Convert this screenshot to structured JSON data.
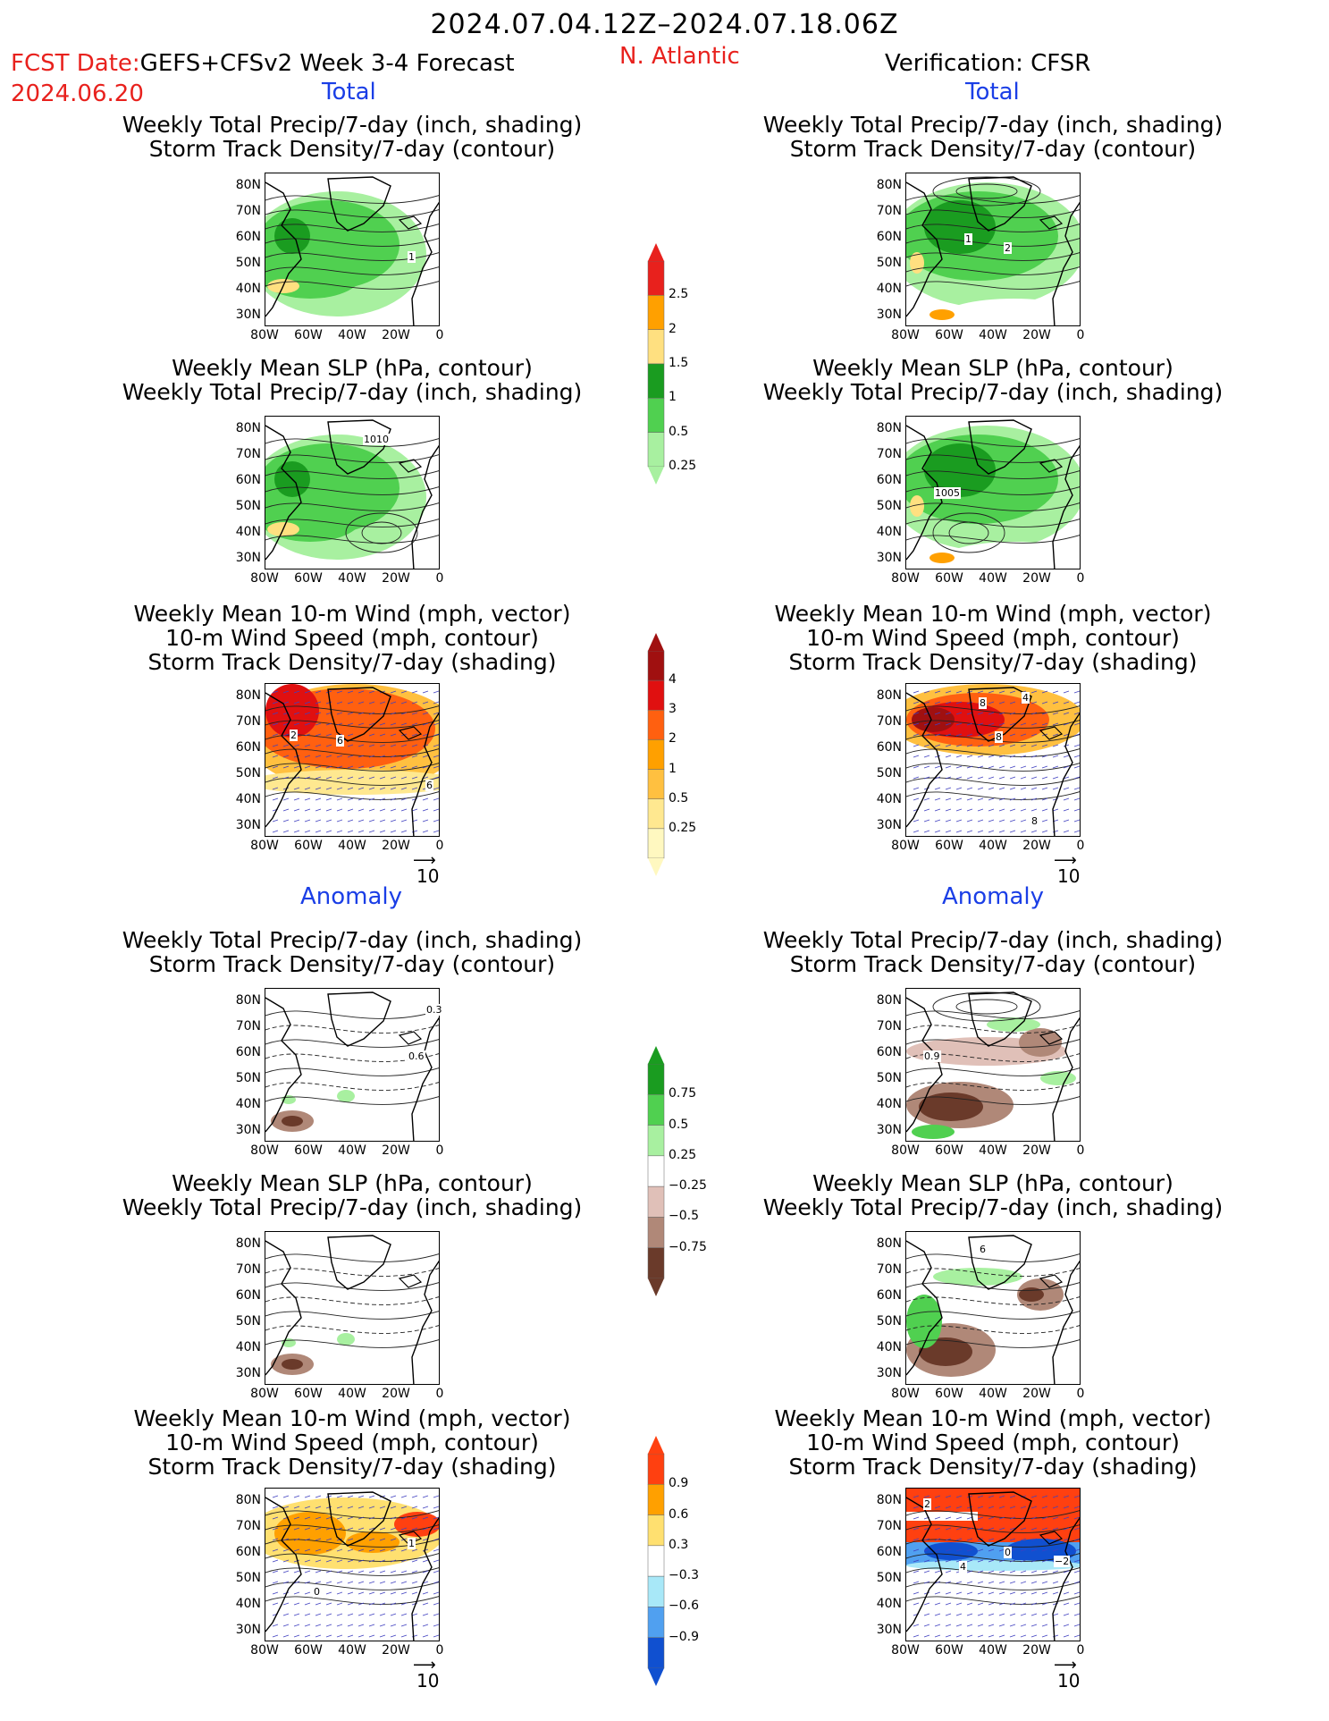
{
  "header": {
    "date_range": "2024.07.04.12Z–2024.07.18.06Z",
    "fcst_prefix": "FCST Date:",
    "fcst_model": "GEFS+CFSv2 Week 3-4 Forecast",
    "fcst_date": "2024.06.20",
    "region": "N. Atlantic",
    "verification": "Verification: CFSR"
  },
  "sections": {
    "total": "Total",
    "anomaly": "Anomaly"
  },
  "titles": {
    "precip_storm": [
      "Weekly Total Precip/7-day (inch, shading)",
      "Storm Track Density/7-day (contour)"
    ],
    "slp_precip": [
      "Weekly Mean SLP (hPa, contour)",
      "Weekly Total Precip/7-day (inch, shading)"
    ],
    "wind_storm": [
      "Weekly Mean 10-m Wind (mph, vector)",
      "10-m Wind Speed (mph, contour)",
      "Storm Track Density/7-day (shading)"
    ]
  },
  "axes": {
    "lat_labels": [
      "80N",
      "70N",
      "60N",
      "50N",
      "40N",
      "30N"
    ],
    "lon_labels": [
      "80W",
      "60W",
      "40W",
      "20W",
      "0"
    ]
  },
  "vector_ref": "10",
  "colorbars": {
    "precip_total": {
      "labels": [
        "2.5",
        "2",
        "1.5",
        "1",
        "0.5",
        "0.25"
      ],
      "colors": [
        "#e8211d",
        "#ffa000",
        "#ffe080",
        "#1a9c20",
        "#50d050",
        "#a8f0a0"
      ]
    },
    "storm_total": {
      "labels": [
        "4",
        "3",
        "2",
        "1",
        "0.5",
        "0.25"
      ],
      "colors": [
        "#a01010",
        "#e01010",
        "#ff6010",
        "#ffa000",
        "#ffc040",
        "#ffe890",
        "#fff8c0"
      ]
    },
    "precip_anom": {
      "labels": [
        "0.75",
        "0.5",
        "0.25",
        "−0.25",
        "−0.5",
        "−0.75"
      ],
      "colors": [
        "#1a9c20",
        "#50d050",
        "#a8f0a0",
        "#ffffff",
        "#e0c0b8",
        "#b08878",
        "#6a3a2a"
      ]
    },
    "storm_anom": {
      "labels": [
        "0.9",
        "0.6",
        "0.3",
        "−0.3",
        "−0.6",
        "−0.9"
      ],
      "colors": [
        "#ff4010",
        "#ffa000",
        "#ffe070",
        "#ffffff",
        "#a8e8f8",
        "#50a0f0",
        "#1050d0"
      ]
    }
  },
  "contour_labels": {
    "l1": "1",
    "r1a": "1",
    "r1b": "2",
    "l2": "1010",
    "r2": "1005",
    "l3a": "2",
    "l3b": "6",
    "l3c": "6",
    "r3a": "8",
    "r3b": "4",
    "r3c": "8",
    "r3d": "8",
    "l4a": "0.3",
    "l4b": "0.6",
    "r4": "0.9",
    "r5": "6",
    "l6": "1",
    "l6b": "0",
    "r6a": "2",
    "r6b": "4",
    "r6c": "0",
    "r6d": "−2"
  }
}
